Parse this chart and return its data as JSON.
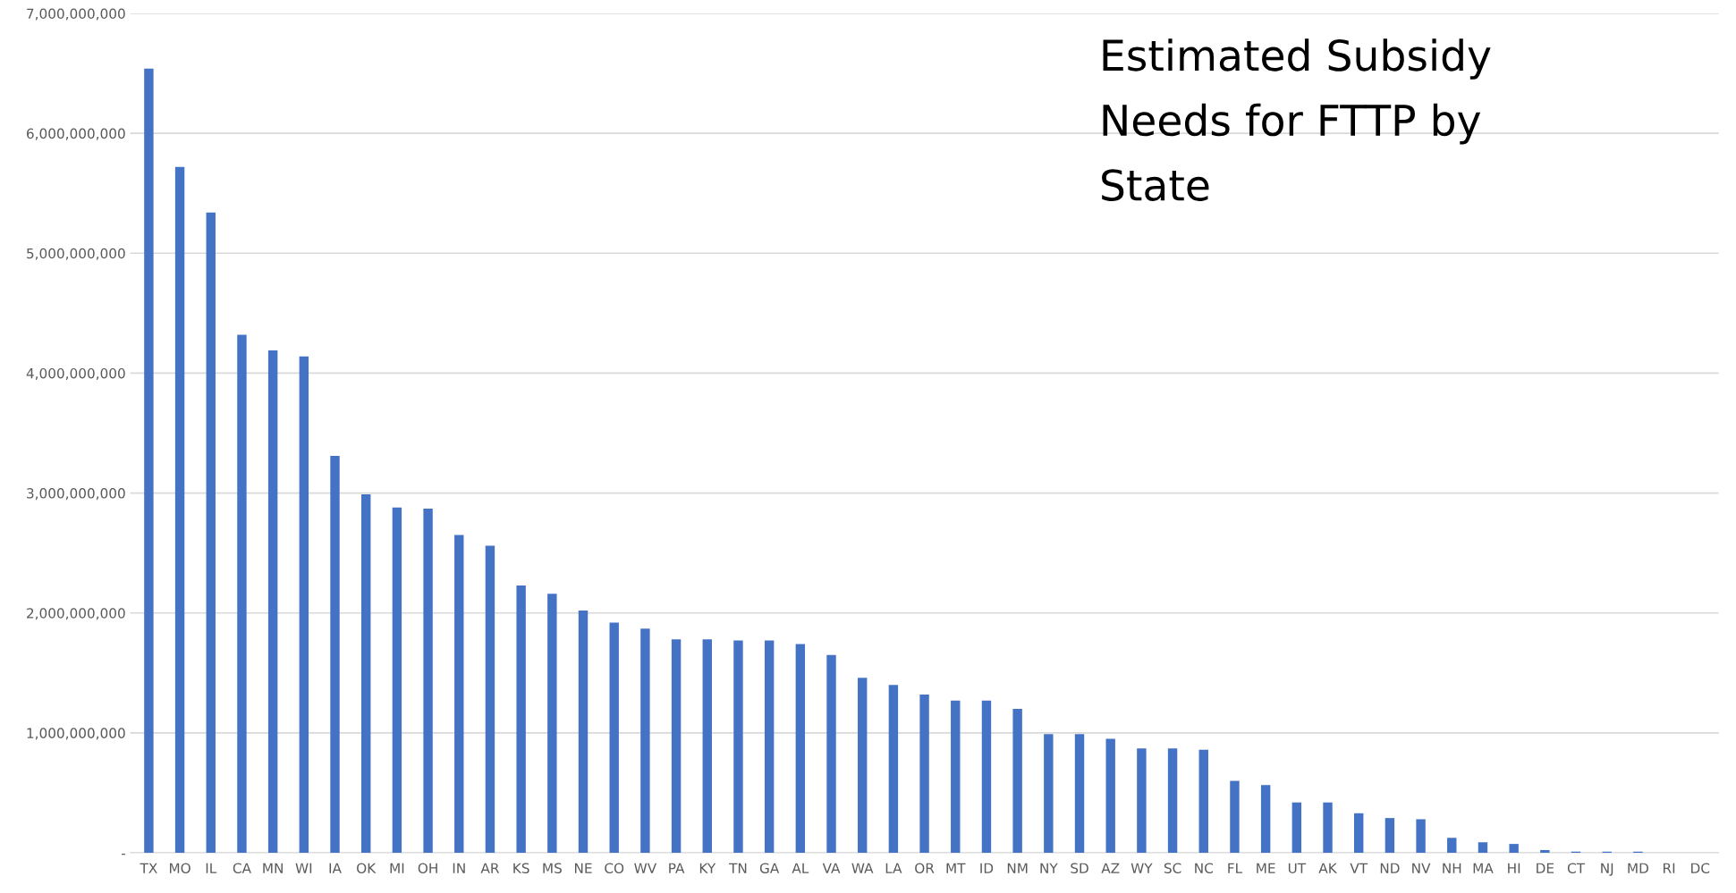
{
  "chart_data": {
    "type": "bar",
    "title": "Estimated Subsidy\nNeeds for FTTP by\nState",
    "categories": [
      "TX",
      "MO",
      "IL",
      "CA",
      "MN",
      "WI",
      "IA",
      "OK",
      "MI",
      "OH",
      "IN",
      "AR",
      "KS",
      "MS",
      "NE",
      "CO",
      "WV",
      "PA",
      "KY",
      "TN",
      "GA",
      "AL",
      "VA",
      "WA",
      "LA",
      "OR",
      "MT",
      "ID",
      "NM",
      "NY",
      "SD",
      "AZ",
      "WY",
      "SC",
      "NC",
      "FL",
      "ME",
      "UT",
      "AK",
      "VT",
      "ND",
      "NV",
      "NH",
      "MA",
      "HI",
      "DE",
      "CT",
      "NJ",
      "MD",
      "RI",
      "DC"
    ],
    "values": [
      6540000000,
      5720000000,
      5340000000,
      4320000000,
      4190000000,
      4140000000,
      3310000000,
      2990000000,
      2880000000,
      2870000000,
      2650000000,
      2560000000,
      2230000000,
      2160000000,
      2020000000,
      1920000000,
      1870000000,
      1780000000,
      1780000000,
      1770000000,
      1770000000,
      1740000000,
      1650000000,
      1460000000,
      1400000000,
      1320000000,
      1270000000,
      1270000000,
      1200000000,
      990000000,
      990000000,
      950000000,
      870000000,
      870000000,
      860000000,
      600000000,
      565000000,
      420000000,
      420000000,
      330000000,
      290000000,
      280000000,
      125000000,
      88000000,
      74000000,
      23000000,
      10000000,
      10000000,
      10000000,
      0,
      0
    ],
    "color": "#4472c4",
    "ylim": [
      0,
      7000000000
    ],
    "yticks": [
      {
        "value": 0,
        "label": "-"
      },
      {
        "value": 1000000000,
        "label": "1,000,000,000"
      },
      {
        "value": 2000000000,
        "label": "2,000,000,000"
      },
      {
        "value": 3000000000,
        "label": "3,000,000,000"
      },
      {
        "value": 4000000000,
        "label": "4,000,000,000"
      },
      {
        "value": 5000000000,
        "label": "5,000,000,000"
      },
      {
        "value": 6000000000,
        "label": "6,000,000,000"
      },
      {
        "value": 7000000000,
        "label": "7,000,000,000"
      }
    ],
    "grid": "y"
  }
}
